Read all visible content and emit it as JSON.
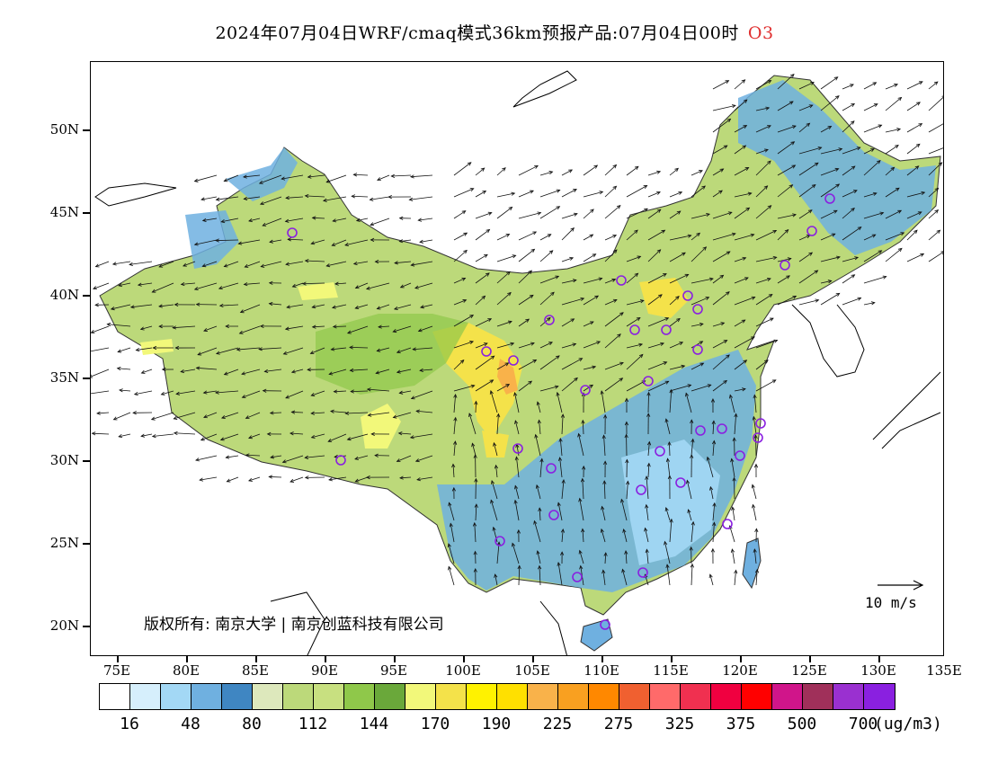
{
  "title": {
    "main": "2024年07月04日WRF/cmaq模式36km预报产品:07月04日00时",
    "species": "O3",
    "species_color": "#e03030"
  },
  "axes": {
    "lat_labels": [
      "50N",
      "45N",
      "40N",
      "35N",
      "30N",
      "25N",
      "20N"
    ],
    "lon_labels": [
      "75E",
      "80E",
      "85E",
      "90E",
      "95E",
      "100E",
      "105E",
      "110E",
      "115E",
      "120E",
      "125E",
      "130E",
      "135E"
    ]
  },
  "copyright": "版权所有: 南京大学 | 南京创蓝科技有限公司",
  "wind_reference": "10 m/s",
  "colorbar": {
    "colors": [
      "#ffffff",
      "#d6effc",
      "#a3d8f5",
      "#6fb0e0",
      "#3f86c2",
      "#dde8bc",
      "#bcd97a",
      "#c8e080",
      "#8fc84a",
      "#6aa83a",
      "#f2f87a",
      "#f4e24a",
      "#fff200",
      "#ffe000",
      "#f9b24a",
      "#f9a020",
      "#ff8800",
      "#f06030",
      "#ff6a6a",
      "#f03050",
      "#f00040",
      "#ff0000",
      "#d0158a",
      "#a0305a",
      "#9a30d0",
      "#8a20e0"
    ],
    "labels": [
      "16",
      "48",
      "80",
      "112",
      "144",
      "170",
      "190",
      "225",
      "275",
      "325",
      "375",
      "500",
      "700"
    ],
    "unit": "(ug/m3)"
  },
  "map": {
    "land_base_color": "#bcd97a",
    "station_marker_color": "#8a20e0"
  }
}
